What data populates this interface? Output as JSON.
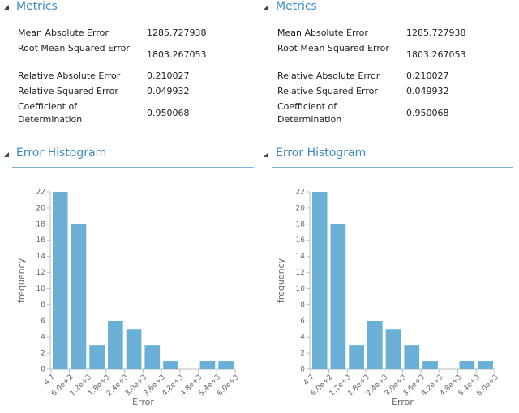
{
  "panels": [
    {
      "metrics_title": "Metrics",
      "metrics": [
        [
          "Mean Absolute Error",
          1285.727938
        ],
        [
          "Root Mean Squared Error",
          1803.267053
        ],
        [
          "Relative Absolute Error",
          0.210027
        ],
        [
          "Relative Squared Error",
          0.049932
        ],
        [
          "Coefficient of Determination",
          0.950068
        ]
      ],
      "histogram_title": "Error Histogram"
    },
    {
      "metrics_title": "Metrics",
      "metrics": [
        [
          "Mean Absolute Error",
          1285.727938
        ],
        [
          "Root Mean Squared Error",
          1803.267053
        ],
        [
          "Relative Absolute Error",
          0.210027
        ],
        [
          "Relative Squared Error",
          0.049932
        ],
        [
          "Coefficient of Determination",
          0.950068
        ]
      ],
      "histogram_title": "Error Histogram"
    }
  ],
  "chart_data": [
    {
      "type": "histogram",
      "x_label": "Error",
      "y_label": "frequency",
      "color": "#6ab0d6",
      "bins": [
        4.7,
        600,
        1200,
        1800,
        2400,
        3000,
        3600,
        4200,
        4800,
        5400,
        6000
      ],
      "values": [
        22,
        18,
        3,
        6,
        5,
        3,
        1,
        0,
        1,
        1
      ],
      "xlim": [
        4.7,
        6000
      ],
      "xticks": [
        4.7,
        {
          "value": 600,
          "label": "6.0e+2"
        },
        {
          "value": 1200,
          "label": "1.2e+3"
        },
        {
          "value": 1800,
          "label": "1.8e+3"
        },
        {
          "value": 2400,
          "label": "2.4e+3"
        },
        {
          "value": 3000,
          "label": "3.0e+3"
        },
        {
          "value": 3600,
          "label": "3.6e+3"
        },
        {
          "value": 4200,
          "label": "4.2e+3"
        },
        {
          "value": 4800,
          "label": "4.8e+3"
        },
        {
          "value": 5400,
          "label": "5.4e+3"
        },
        {
          "value": 6000,
          "label": "6.0e+3"
        }
      ],
      "ylim": [
        0,
        22
      ],
      "yticks": [
        0,
        2,
        4,
        6,
        8,
        10,
        12,
        14,
        16,
        18,
        20,
        22
      ],
      "grid": false
    },
    {
      "type": "histogram",
      "x_label": "Error",
      "y_label": "frequency",
      "color": "#6ab0d6",
      "bins": [
        4.7,
        600,
        1200,
        1800,
        2400,
        3000,
        3600,
        4200,
        4800,
        5400,
        6000
      ],
      "values": [
        22,
        18,
        3,
        6,
        5,
        3,
        1,
        0,
        1,
        1
      ],
      "xlim": [
        4.7,
        6000
      ],
      "xticks": [
        4.7,
        {
          "value": 600,
          "label": "6.0e+2"
        },
        {
          "value": 1200,
          "label": "1.2e+3"
        },
        {
          "value": 1800,
          "label": "1.8e+3"
        },
        {
          "value": 2400,
          "label": "2.4e+3"
        },
        {
          "value": 3000,
          "label": "3.0e+3"
        },
        {
          "value": 3600,
          "label": "3.6e+3"
        },
        {
          "value": 4200,
          "label": "4.2e+3"
        },
        {
          "value": 4800,
          "label": "4.8e+3"
        },
        {
          "value": 5400,
          "label": "5.4e+3"
        },
        {
          "value": 6000,
          "label": "6.0e+3"
        }
      ],
      "ylim": [
        0,
        22
      ],
      "yticks": [
        0,
        2,
        4,
        6,
        8,
        10,
        12,
        14,
        16,
        18,
        20,
        22
      ],
      "grid": false
    }
  ]
}
